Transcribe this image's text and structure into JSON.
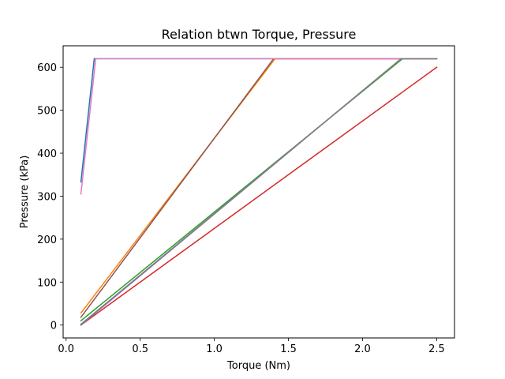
{
  "chart_data": {
    "type": "line",
    "title": "Relation btwn Torque, Pressure",
    "xlabel": "Torque (Nm)",
    "ylabel": "Pressure (kPa)",
    "xlim": [
      -0.02,
      2.62
    ],
    "ylim": [
      -30,
      650
    ],
    "xticks": [
      0.0,
      0.5,
      1.0,
      1.5,
      2.0,
      2.5
    ],
    "xtick_labels": [
      "0.0",
      "0.5",
      "1.0",
      "1.5",
      "2.0",
      "2.5"
    ],
    "yticks": [
      0,
      100,
      200,
      300,
      400,
      500,
      600
    ],
    "ytick_labels": [
      "0",
      "100",
      "200",
      "300",
      "400",
      "500",
      "600"
    ],
    "grid": false,
    "legend": false,
    "series": [
      {
        "color": "#1f77b4",
        "x": [
          0.1,
          0.19,
          2.5
        ],
        "y": [
          333,
          620,
          620
        ]
      },
      {
        "color": "#ff7f0e",
        "x": [
          0.1,
          1.41,
          2.5
        ],
        "y": [
          28,
          620,
          620
        ]
      },
      {
        "color": "#2ca02c",
        "x": [
          0.1,
          2.27,
          2.5
        ],
        "y": [
          10,
          620,
          620
        ]
      },
      {
        "color": "#d62728",
        "x": [
          0.1,
          2.5
        ],
        "y": [
          0,
          600
        ]
      },
      {
        "color": "#9467bd",
        "x": [
          0.1,
          2.26,
          2.5
        ],
        "y": [
          0,
          620,
          620
        ]
      },
      {
        "color": "#8c564b",
        "x": [
          0.1,
          1.4,
          2.5
        ],
        "y": [
          18,
          620,
          620
        ]
      },
      {
        "color": "#e377c2",
        "x": [
          0.1,
          0.2,
          2.5
        ],
        "y": [
          305,
          620,
          620
        ]
      },
      {
        "color": "#7f7f7f",
        "x": [
          0.1,
          2.26,
          2.5
        ],
        "y": [
          2,
          620,
          620
        ]
      }
    ]
  }
}
